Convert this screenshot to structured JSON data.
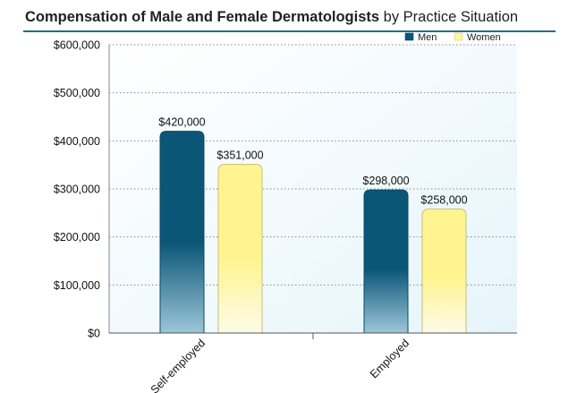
{
  "title": {
    "main": "Compensation of Male and Female Dermatologists",
    "suffix": " by Practice Situation"
  },
  "chart_data": {
    "type": "bar",
    "title": "Compensation of Male and Female Dermatologists by Practice Situation",
    "categories": [
      "Self-employed",
      "Employed"
    ],
    "series": [
      {
        "name": "Men",
        "values": [
          420000,
          298000
        ],
        "labels": [
          "$420,000",
          "$298,000"
        ],
        "color": "#0b5577"
      },
      {
        "name": "Women",
        "values": [
          351000,
          258000
        ],
        "labels": [
          "$351,000",
          "$258,000"
        ],
        "color": "#fff59a"
      }
    ],
    "yticks": [
      0,
      100000,
      200000,
      300000,
      400000,
      500000,
      600000
    ],
    "ytick_labels": [
      "$0",
      "$100,000",
      "$200,000",
      "$300,000",
      "$400,000",
      "$500,000",
      "$600,000"
    ],
    "ylim": [
      0,
      600000
    ],
    "xlabel": "",
    "ylabel": "",
    "legend_position": "top-right",
    "grid": true
  }
}
